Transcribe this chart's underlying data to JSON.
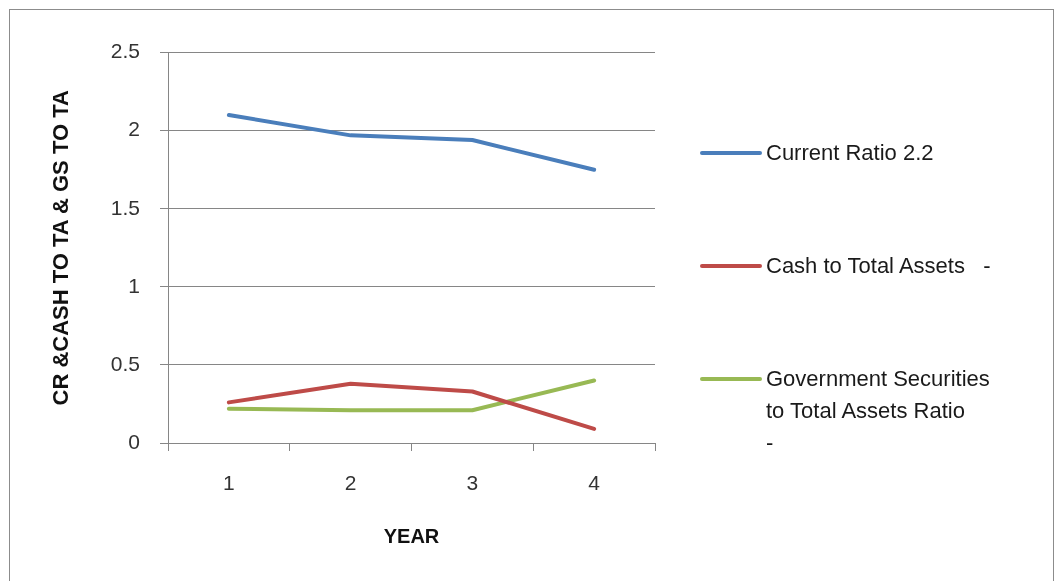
{
  "chart_data": {
    "type": "line",
    "xlabel": "YEAR",
    "ylabel": "CR &CASH TO TA & GS TO TA",
    "categories": [
      "1",
      "2",
      "3",
      "4"
    ],
    "series": [
      {
        "name": "Current Ratio 2.2",
        "color": "#4a7ebb",
        "values": [
          2.1,
          1.97,
          1.94,
          1.75
        ]
      },
      {
        "name": "Cash to Total Assets   -",
        "color": "#be4b48",
        "values": [
          0.26,
          0.38,
          0.33,
          0.09
        ]
      },
      {
        "name": "Government Securities to Total Assets Ratio     -",
        "color": "#98b954",
        "values": [
          0.22,
          0.21,
          0.21,
          0.4
        ]
      }
    ],
    "ylim": [
      0,
      2.5
    ],
    "yticks": [
      0,
      0.5,
      1,
      1.5,
      2,
      2.5
    ],
    "grid": "y",
    "legend": "right",
    "marker": "none",
    "line_style": "solid"
  }
}
